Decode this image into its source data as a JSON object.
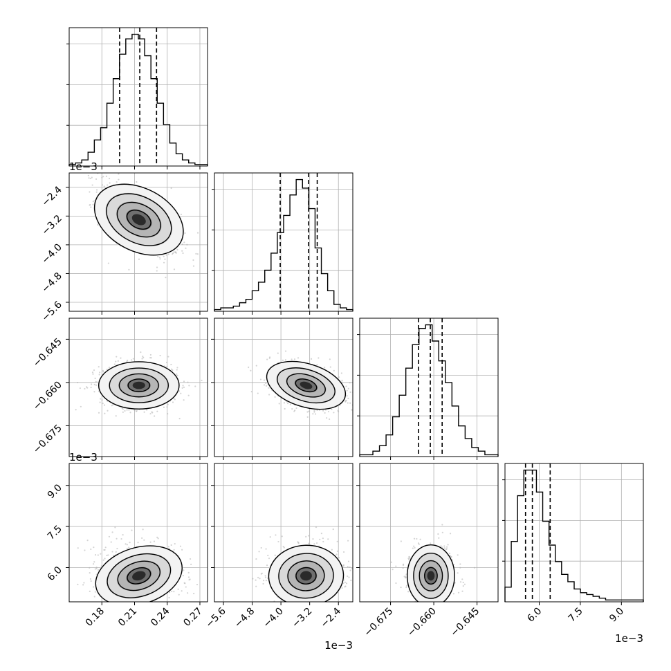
{
  "chart_data": {
    "type": "corner",
    "parameters": [
      {
        "index": 0,
        "range": [
          0.15,
          0.277
        ],
        "ticks": [
          0.18,
          0.21,
          0.24,
          0.27
        ],
        "tick_labels": [
          "0.18",
          "0.21",
          "0.24",
          "0.27"
        ],
        "offset_label": "",
        "quantiles": [
          0.1963,
          0.2148,
          0.2302
        ],
        "mean": 0.214,
        "sd": 0.018
      },
      {
        "index": 1,
        "range": [
          -5.85,
          -2.0
        ],
        "ticks": [
          -5.6,
          -4.8,
          -4.0,
          -3.2,
          -2.4
        ],
        "tick_labels": [
          "−5.6",
          "−4.8",
          "−4.0",
          "−3.2",
          "−2.4"
        ],
        "offset_label": "1e−3",
        "quantiles": [
          -4.02,
          -3.23,
          -2.99
        ],
        "mean": -3.3,
        "sd": 0.5
      },
      {
        "index": 2,
        "range": [
          -0.6857,
          -0.6377
        ],
        "ticks": [
          -0.675,
          -0.66,
          -0.645
        ],
        "tick_labels": [
          "−0.675",
          "−0.660",
          "−0.645"
        ],
        "offset_label": "",
        "quantiles": [
          -0.6653,
          -0.6612,
          -0.6571
        ],
        "mean": -0.661,
        "sd": 0.004
      },
      {
        "index": 3,
        "range": [
          4.75,
          9.8
        ],
        "ticks": [
          6.0,
          7.5,
          9.0
        ],
        "tick_labels": [
          "6.0",
          "7.5",
          "9.0"
        ],
        "offset_label": "1e−3",
        "quantiles": [
          5.5,
          5.75,
          6.4
        ],
        "mean": 5.7,
        "sd": 0.55
      }
    ],
    "histograms": [
      {
        "param": 0,
        "counts": [
          1,
          2,
          4,
          9,
          17,
          25,
          41,
          57,
          73,
          83,
          86,
          83,
          72,
          57,
          41,
          27,
          15,
          8,
          4,
          2,
          1,
          1
        ]
      },
      {
        "param": 1,
        "counts": [
          1,
          2,
          2,
          3,
          5,
          7,
          12,
          17,
          24,
          34,
          46,
          56,
          68,
          77,
          72,
          60,
          37,
          22,
          12,
          4,
          2,
          1
        ]
      },
      {
        "param": 2,
        "counts": [
          1,
          1,
          3,
          6,
          12,
          22,
          34,
          49,
          62,
          71,
          73,
          64,
          53,
          41,
          28,
          17,
          10,
          5,
          3,
          1,
          1
        ]
      },
      {
        "param": 3,
        "counts": [
          8,
          33,
          58,
          72,
          72,
          60,
          44,
          31,
          22,
          15,
          11,
          7,
          5,
          4,
          3,
          2,
          1,
          1,
          1,
          1,
          1,
          1
        ]
      }
    ],
    "pairs": [
      {
        "x": 0,
        "y": 1,
        "correlation": -0.6
      },
      {
        "x": 0,
        "y": 2,
        "correlation": 0.0
      },
      {
        "x": 1,
        "y": 2,
        "correlation": -0.35
      },
      {
        "x": 0,
        "y": 3,
        "correlation": 0.35
      },
      {
        "x": 1,
        "y": 3,
        "correlation": 0.05
      },
      {
        "x": 2,
        "y": 3,
        "correlation": 0.0
      }
    ],
    "grid": true,
    "colors": {
      "line": "#000000",
      "quantile_line": "#000000",
      "scatter": "#b0b0b0",
      "grid": "#b0b0b0",
      "density_dark": "#000000"
    }
  }
}
